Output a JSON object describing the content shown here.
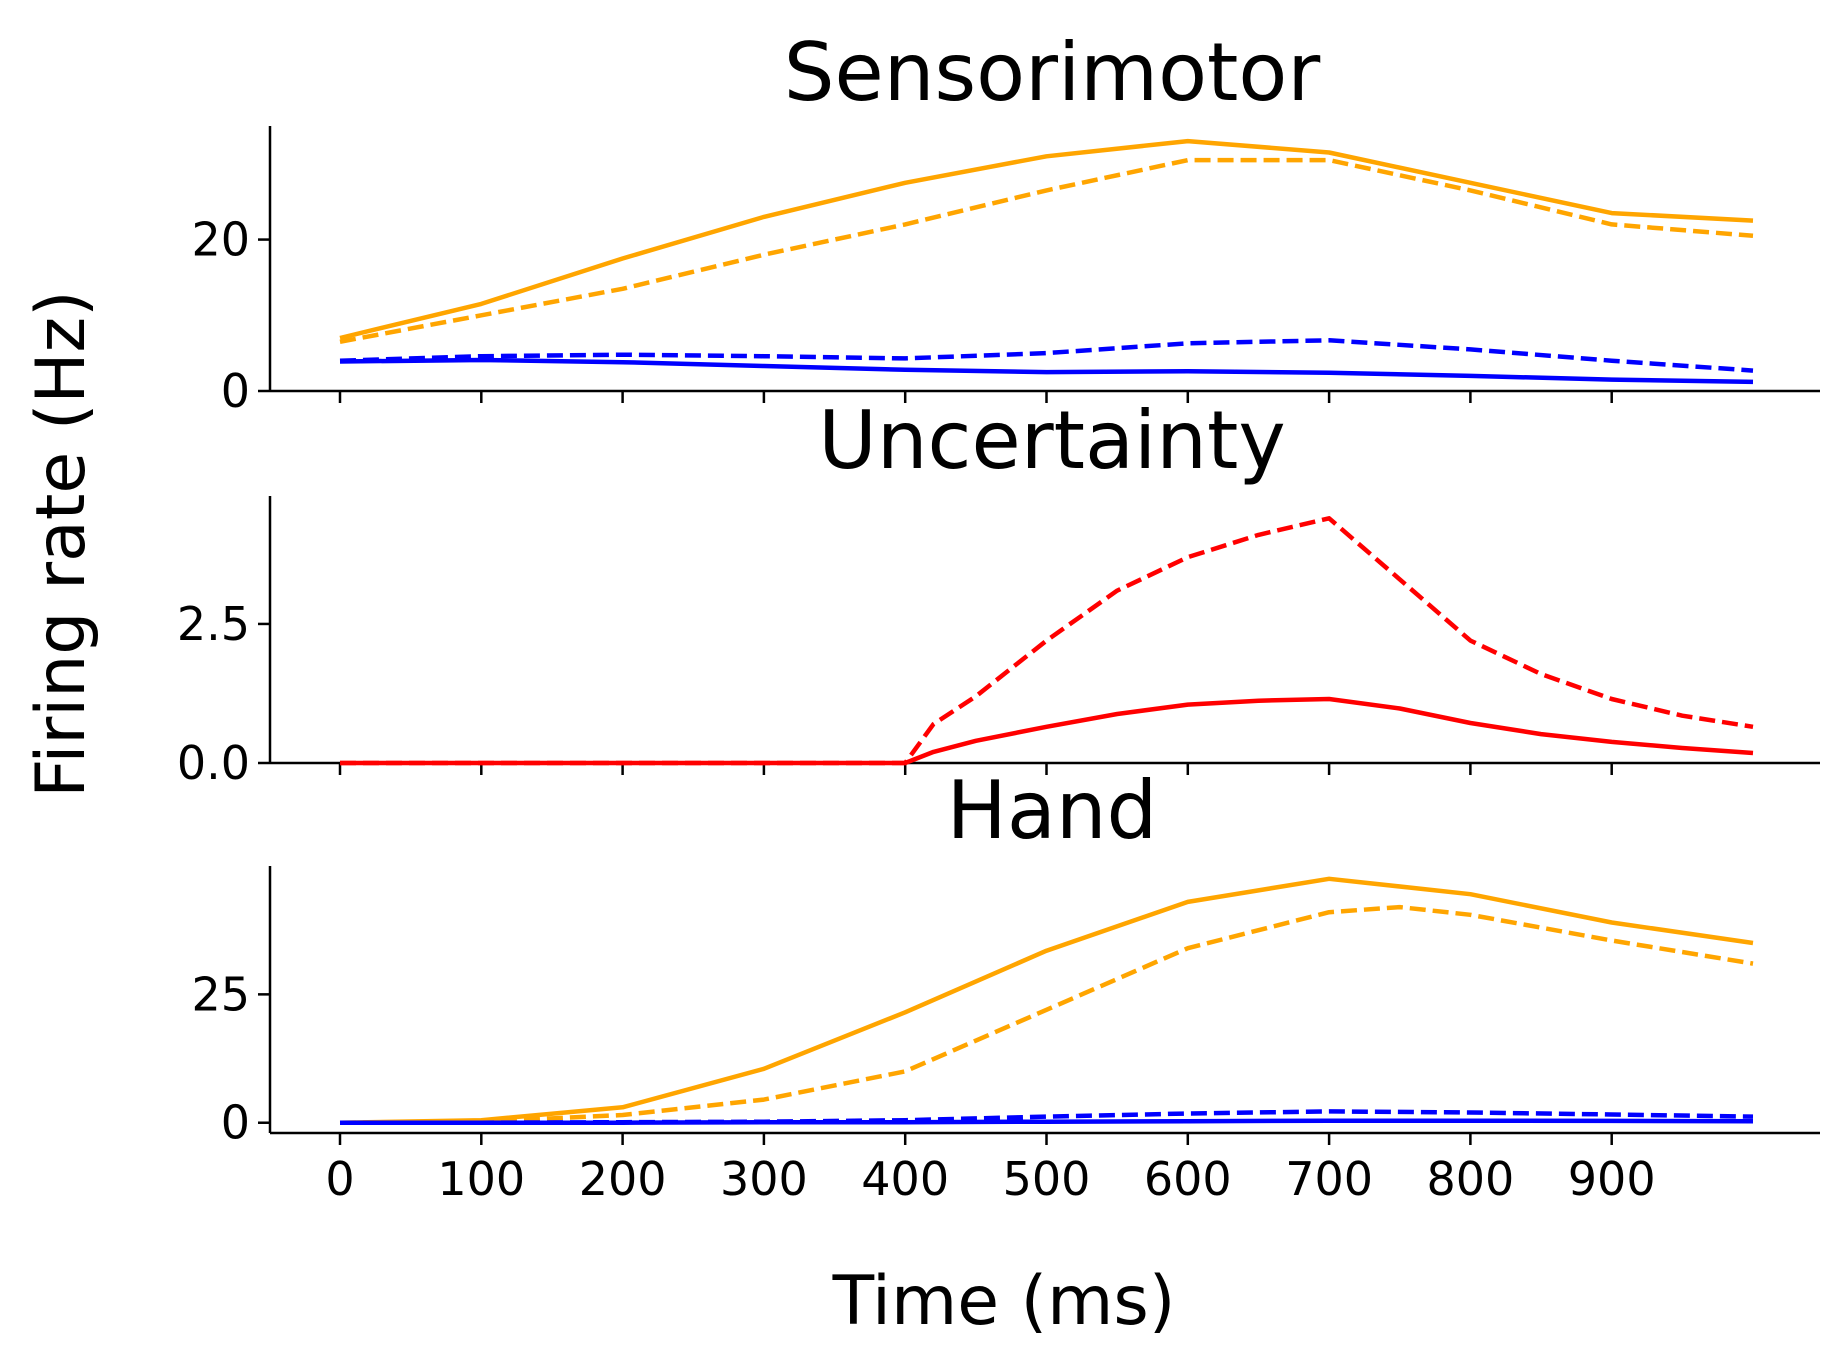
{
  "figure": {
    "ylabel": "Firing rate (Hz)",
    "xlabel": "Time (ms)"
  },
  "colors": {
    "orange": "#ffa500",
    "blue": "#0000ff",
    "red": "#ff0000"
  },
  "chart_data": [
    {
      "type": "line",
      "title": "Sensorimotor",
      "ylim": [
        0,
        35
      ],
      "yticks": [
        0,
        20
      ],
      "ytick_labels": [
        "0",
        "20"
      ],
      "xlim": [
        -50,
        1050
      ],
      "xticks": [
        0,
        100,
        200,
        300,
        400,
        500,
        600,
        700,
        800,
        900
      ],
      "xtick_labels_visible": false,
      "grid": false,
      "legend": "none",
      "series": [
        {
          "color": "orange",
          "style": "solid",
          "x": [
            0,
            100,
            200,
            300,
            400,
            500,
            600,
            700,
            800,
            900,
            1000
          ],
          "y": [
            7.0,
            11.5,
            17.5,
            23.0,
            27.5,
            31.0,
            33.0,
            31.5,
            27.5,
            23.5,
            22.5
          ]
        },
        {
          "color": "orange",
          "style": "dashed",
          "x": [
            0,
            100,
            200,
            300,
            400,
            500,
            600,
            700,
            800,
            900,
            1000
          ],
          "y": [
            6.5,
            10.0,
            13.5,
            18.0,
            22.0,
            26.5,
            30.5,
            30.5,
            26.5,
            22.0,
            20.5
          ]
        },
        {
          "color": "blue",
          "style": "dashed",
          "x": [
            0,
            100,
            200,
            300,
            400,
            500,
            600,
            700,
            800,
            900,
            1000
          ],
          "y": [
            4.0,
            4.6,
            4.8,
            4.6,
            4.3,
            5.0,
            6.3,
            6.7,
            5.5,
            4.0,
            2.7
          ]
        },
        {
          "color": "blue",
          "style": "solid",
          "x": [
            0,
            100,
            200,
            300,
            400,
            500,
            600,
            700,
            800,
            900,
            1000
          ],
          "y": [
            3.9,
            4.1,
            3.8,
            3.3,
            2.8,
            2.5,
            2.6,
            2.4,
            2.0,
            1.5,
            1.2
          ]
        }
      ]
    },
    {
      "type": "line",
      "title": "Uncertainty",
      "ylim": [
        0,
        4.8
      ],
      "yticks": [
        0.0,
        2.5
      ],
      "ytick_labels": [
        "0.0",
        "2.5"
      ],
      "xlim": [
        -50,
        1050
      ],
      "xticks": [
        0,
        100,
        200,
        300,
        400,
        500,
        600,
        700,
        800,
        900
      ],
      "xtick_labels_visible": false,
      "grid": false,
      "legend": "none",
      "series": [
        {
          "color": "red",
          "style": "dashed",
          "x": [
            0,
            100,
            200,
            300,
            400,
            420,
            450,
            500,
            550,
            600,
            650,
            700,
            750,
            800,
            850,
            900,
            950,
            1000
          ],
          "y": [
            0,
            0,
            0,
            0,
            0,
            0.7,
            1.2,
            2.2,
            3.1,
            3.7,
            4.1,
            4.4,
            3.3,
            2.2,
            1.6,
            1.15,
            0.85,
            0.65
          ]
        },
        {
          "color": "red",
          "style": "solid",
          "x": [
            0,
            100,
            200,
            300,
            400,
            420,
            450,
            500,
            550,
            600,
            650,
            700,
            750,
            800,
            850,
            900,
            950,
            1000
          ],
          "y": [
            0,
            0,
            0,
            0,
            0,
            0.2,
            0.4,
            0.65,
            0.88,
            1.05,
            1.12,
            1.15,
            0.98,
            0.72,
            0.52,
            0.38,
            0.27,
            0.18
          ]
        }
      ]
    },
    {
      "type": "line",
      "title": "Hand",
      "ylim": [
        -2,
        50
      ],
      "yticks": [
        0,
        25
      ],
      "ytick_labels": [
        "0",
        "25"
      ],
      "xlim": [
        -50,
        1050
      ],
      "xticks": [
        0,
        100,
        200,
        300,
        400,
        500,
        600,
        700,
        800,
        900
      ],
      "xtick_labels": [
        "0",
        "100",
        "200",
        "300",
        "400",
        "500",
        "600",
        "700",
        "800",
        "900"
      ],
      "xtick_labels_visible": true,
      "grid": false,
      "legend": "none",
      "series": [
        {
          "color": "orange",
          "style": "solid",
          "x": [
            0,
            100,
            200,
            300,
            400,
            500,
            600,
            700,
            800,
            900,
            1000
          ],
          "y": [
            0,
            0.5,
            3.0,
            10.5,
            21.5,
            33.5,
            43.0,
            47.5,
            44.5,
            39.0,
            35.0
          ]
        },
        {
          "color": "orange",
          "style": "dashed",
          "x": [
            0,
            100,
            200,
            300,
            400,
            500,
            600,
            700,
            750,
            800,
            900,
            1000
          ],
          "y": [
            0,
            0.2,
            1.5,
            4.5,
            10.0,
            22.0,
            34.0,
            41.0,
            42.0,
            40.5,
            35.5,
            31.0
          ]
        },
        {
          "color": "blue",
          "style": "dashed",
          "x": [
            0,
            100,
            200,
            300,
            400,
            500,
            600,
            700,
            800,
            900,
            1000
          ],
          "y": [
            0,
            0,
            0.1,
            0.2,
            0.5,
            1.2,
            1.8,
            2.2,
            2.0,
            1.6,
            1.2
          ]
        },
        {
          "color": "blue",
          "style": "solid",
          "x": [
            0,
            100,
            200,
            300,
            400,
            500,
            600,
            700,
            800,
            900,
            1000
          ],
          "y": [
            0,
            0,
            0,
            0.1,
            0.1,
            0.2,
            0.3,
            0.4,
            0.4,
            0.35,
            0.3
          ]
        }
      ]
    }
  ]
}
